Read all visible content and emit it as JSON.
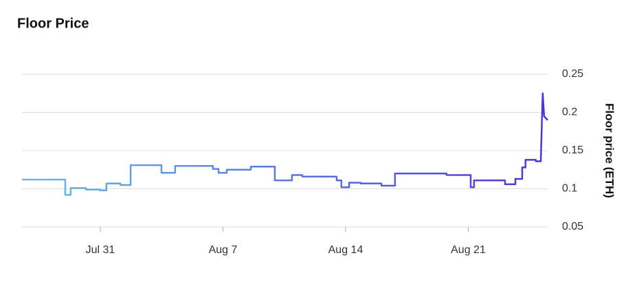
{
  "chart_data": {
    "type": "line",
    "title": "Floor Price",
    "y_label": "Floor price (ETH)",
    "gradient": [
      "#63bfe7",
      "#5030d8"
    ],
    "x": [
      -4.47,
      -2.0,
      -2.0,
      -1.69,
      -1.69,
      -0.82,
      -0.82,
      -0.04,
      -0.04,
      0.35,
      0.35,
      1.14,
      1.14,
      1.73,
      1.73,
      3.49,
      3.49,
      4.27,
      4.27,
      6.43,
      6.43,
      6.75,
      6.75,
      7.22,
      7.22,
      8.59,
      8.59,
      9.96,
      9.96,
      10.94,
      10.94,
      11.53,
      11.53,
      13.49,
      13.49,
      13.76,
      13.76,
      14.2,
      14.2,
      14.86,
      14.86,
      16.04,
      16.04,
      16.82,
      16.82,
      19.76,
      19.76,
      21.14,
      21.14,
      21.33,
      21.33,
      23.1,
      23.1,
      23.69,
      23.69,
      24.08,
      24.08,
      24.27,
      24.27,
      24.86,
      24.86,
      25.14,
      25.25,
      25.33,
      25.53
    ],
    "values": [
      0.112,
      0.112,
      0.092,
      0.092,
      0.101,
      0.101,
      0.099,
      0.099,
      0.098,
      0.098,
      0.107,
      0.107,
      0.105,
      0.105,
      0.131,
      0.131,
      0.121,
      0.121,
      0.13,
      0.13,
      0.126,
      0.126,
      0.121,
      0.121,
      0.125,
      0.125,
      0.129,
      0.129,
      0.111,
      0.111,
      0.118,
      0.118,
      0.116,
      0.116,
      0.111,
      0.111,
      0.102,
      0.102,
      0.108,
      0.108,
      0.107,
      0.107,
      0.104,
      0.104,
      0.12,
      0.12,
      0.118,
      0.118,
      0.102,
      0.102,
      0.111,
      0.111,
      0.106,
      0.106,
      0.113,
      0.113,
      0.128,
      0.128,
      0.138,
      0.138,
      0.136,
      0.136,
      0.225,
      0.195,
      0.19
    ],
    "xlim": [
      -4.47,
      25.53
    ],
    "xticks": [
      {
        "value": 0,
        "label": "Jul 31"
      },
      {
        "value": 7,
        "label": "Aug 7"
      },
      {
        "value": 14,
        "label": "Aug 14"
      },
      {
        "value": 21,
        "label": "Aug 21"
      }
    ],
    "ylim": [
      0.05,
      0.25
    ],
    "yticks": [
      0.05,
      0.1,
      0.15,
      0.2,
      0.25
    ],
    "grid": true
  }
}
